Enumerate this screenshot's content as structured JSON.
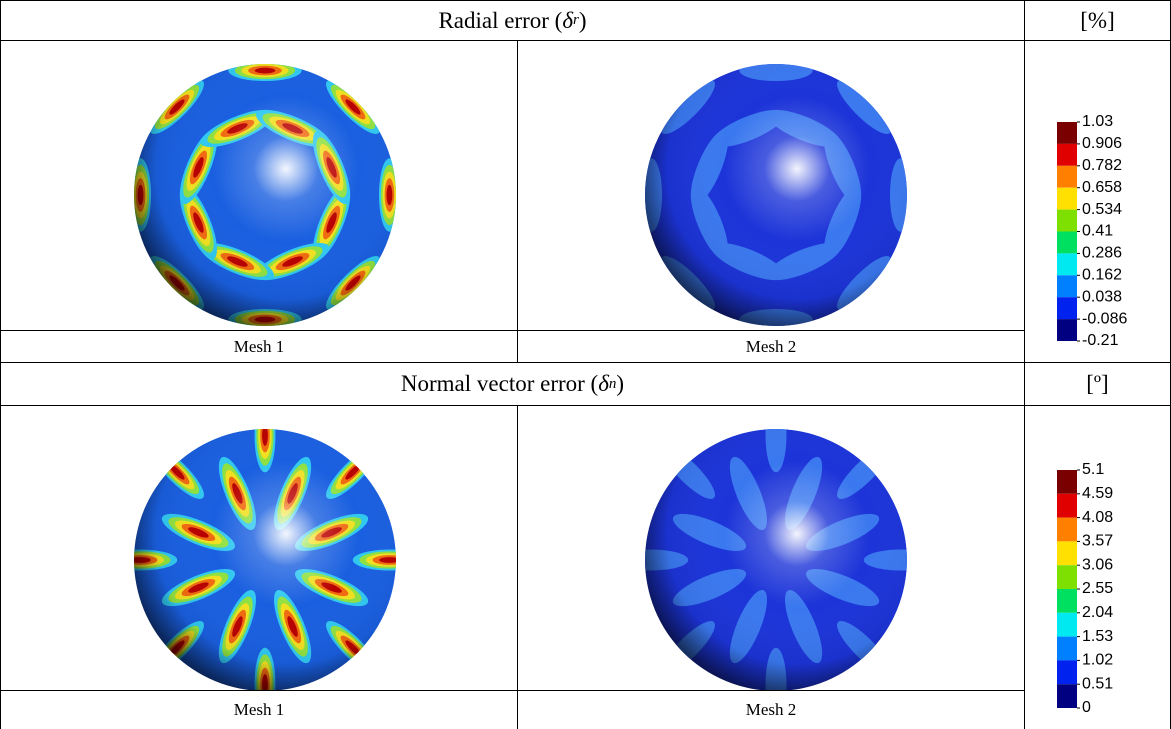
{
  "sections": [
    {
      "title": {
        "prefix": "Radial error (",
        "symbol": "δ",
        "subscript": "r",
        "suffix": ")"
      },
      "unit": "[%]",
      "meshes": [
        "Mesh 1",
        "Mesh 2"
      ],
      "legend": {
        "ticks": [
          1.03,
          0.906,
          0.782,
          0.658,
          0.534,
          0.41,
          0.286,
          0.162,
          0.038,
          -0.086,
          -0.21
        ],
        "colors": [
          "#7a0000",
          "#e00000",
          "#ff7f00",
          "#ffe000",
          "#7ee000",
          "#00e060",
          "#00e8f0",
          "#0080ff",
          "#0022ee",
          "#000080"
        ]
      }
    },
    {
      "title": {
        "prefix": "Normal vector error (",
        "symbol": "δ",
        "subscript": "n",
        "suffix": ")"
      },
      "unit": "[º]",
      "meshes": [
        "Mesh 1",
        "Mesh 2"
      ],
      "legend": {
        "ticks": [
          5.1,
          4.59,
          4.08,
          3.57,
          3.06,
          2.55,
          2.04,
          1.53,
          1.02,
          0.51,
          0
        ],
        "colors": [
          "#7a0000",
          "#e00000",
          "#ff7f00",
          "#ffe000",
          "#7ee000",
          "#00e060",
          "#00e8f0",
          "#0080ff",
          "#0022ee",
          "#000080"
        ]
      }
    }
  ]
}
